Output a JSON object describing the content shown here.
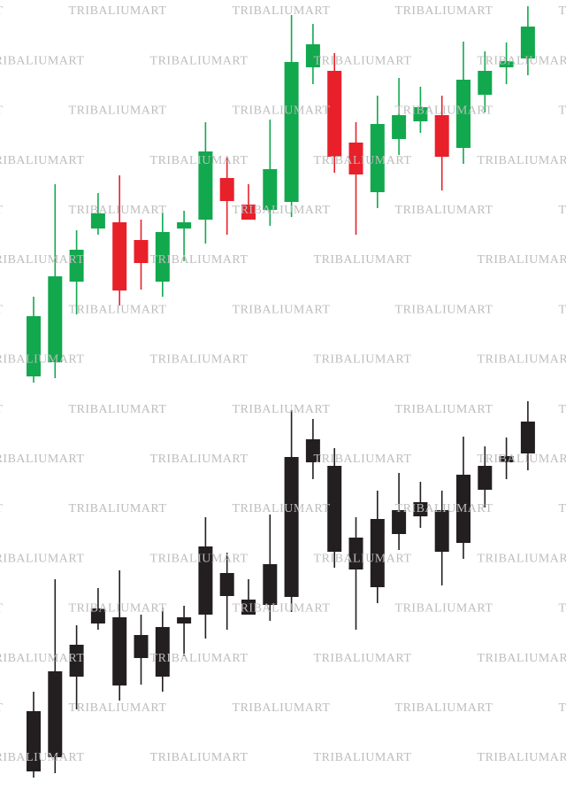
{
  "watermark": "TRIBALIUMART",
  "chart_data": [
    {
      "type": "candlestick",
      "up_color": "#12a84e",
      "down_color": "#e8202a",
      "ylim": [
        0,
        450
      ],
      "open": [
        25,
        41,
        132,
        192,
        199,
        179,
        132,
        192,
        202,
        249,
        219,
        213,
        222,
        374,
        370,
        289,
        233,
        293,
        313,
        320,
        283,
        343,
        374,
        384
      ],
      "high": [
        115,
        242,
        190,
        232,
        252,
        202,
        210,
        212,
        312,
        272,
        242,
        315,
        433,
        423,
        390,
        312,
        342,
        362,
        352,
        342,
        403,
        392,
        402,
        443
      ],
      "low": [
        18,
        23,
        95,
        185,
        105,
        123,
        115,
        155,
        175,
        185,
        202,
        195,
        205,
        355,
        255,
        185,
        215,
        275,
        300,
        235,
        265,
        323,
        355,
        365
      ],
      "close": [
        93,
        138,
        168,
        209,
        122,
        153,
        188,
        199,
        279,
        223,
        202,
        259,
        380,
        400,
        273,
        253,
        310,
        320,
        329,
        273,
        360,
        370,
        381,
        420
      ]
    },
    {
      "type": "candlestick",
      "up_color": "#231f20",
      "down_color": "#231f20",
      "ylim": [
        0,
        450
      ],
      "open": [
        25,
        41,
        132,
        192,
        199,
        179,
        132,
        192,
        202,
        249,
        219,
        213,
        222,
        374,
        370,
        289,
        233,
        293,
        313,
        320,
        283,
        343,
        374,
        384
      ],
      "high": [
        115,
        242,
        190,
        232,
        252,
        202,
        210,
        212,
        312,
        272,
        242,
        315,
        433,
        423,
        390,
        312,
        342,
        362,
        352,
        342,
        403,
        392,
        402,
        443
      ],
      "low": [
        18,
        23,
        95,
        185,
        105,
        123,
        115,
        155,
        175,
        185,
        202,
        195,
        205,
        355,
        255,
        185,
        215,
        275,
        300,
        235,
        265,
        323,
        355,
        365
      ],
      "close": [
        93,
        138,
        168,
        209,
        122,
        153,
        188,
        199,
        279,
        223,
        202,
        259,
        380,
        400,
        273,
        253,
        310,
        320,
        329,
        273,
        360,
        370,
        381,
        420
      ]
    }
  ]
}
